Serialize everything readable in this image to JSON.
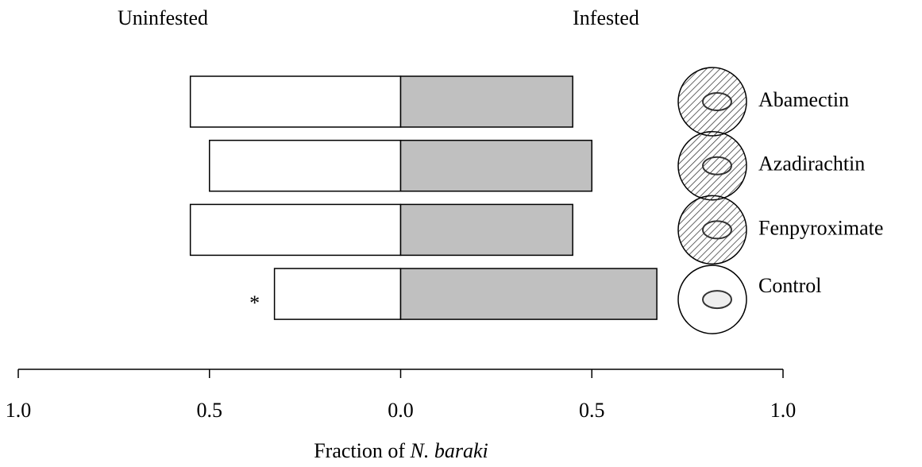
{
  "chart_data": {
    "type": "diverging-bar",
    "categories": [
      "Abamectin",
      "Azadirachtin",
      "Fenpyroximate",
      "Control"
    ],
    "series": [
      {
        "name": "Uninfested",
        "color": "#ffffff",
        "values": [
          0.55,
          0.5,
          0.55,
          0.33
        ]
      },
      {
        "name": "Infested",
        "color": "#c0c0c0",
        "values": [
          0.45,
          0.5,
          0.45,
          0.67
        ]
      }
    ],
    "xlim": [
      -1,
      1
    ],
    "xticks": [
      {
        "value": -1,
        "label": "1.0"
      },
      {
        "value": -0.5,
        "label": "0.5"
      },
      {
        "value": 0,
        "label": "0.0"
      },
      {
        "value": 0.5,
        "label": "0.5"
      },
      {
        "value": 1,
        "label": "1.0"
      }
    ],
    "x_label": [
      "Fraction of ",
      "N. baraki"
    ],
    "annotations": [
      "*"
    ]
  }
}
